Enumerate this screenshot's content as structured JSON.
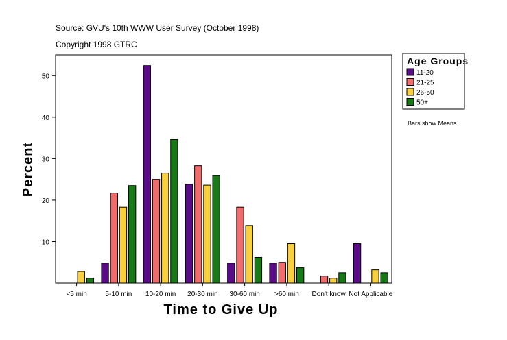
{
  "header": {
    "source": "Source: GVU's 10th WWW User Survey (October 1998)",
    "copyright": "Copyright 1998 GTRC"
  },
  "note": "Bars show Means",
  "chart_data": {
    "type": "bar",
    "title": "",
    "xlabel": "Time to Give Up",
    "ylabel": "Percent",
    "ylim": [
      0,
      55
    ],
    "yticks": [
      10,
      20,
      30,
      40,
      50
    ],
    "categories": [
      "<5 min",
      "5-10 min",
      "10-20 min",
      "20-30 min",
      "30-60 min",
      ">60 min",
      "Don't know",
      "Not Applicable"
    ],
    "legend_title": "Age Groups",
    "legend_position": "right",
    "series": [
      {
        "name": "11-20",
        "color": "#5b0b8a",
        "values": [
          0,
          4.8,
          52.4,
          23.8,
          4.8,
          4.8,
          0,
          9.5
        ]
      },
      {
        "name": "21-25",
        "color": "#ef6c6c",
        "values": [
          0,
          21.7,
          25.0,
          28.3,
          18.3,
          5.0,
          1.7,
          0
        ]
      },
      {
        "name": "26-50",
        "color": "#f8cf3c",
        "values": [
          2.8,
          18.3,
          26.5,
          23.6,
          13.9,
          9.5,
          1.2,
          3.2
        ]
      },
      {
        "name": "50+",
        "color": "#177a17",
        "values": [
          1.2,
          23.5,
          34.6,
          25.9,
          6.2,
          3.7,
          2.5,
          2.5
        ]
      }
    ]
  }
}
